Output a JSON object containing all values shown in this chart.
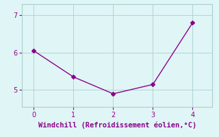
{
  "x": [
    0,
    1,
    2,
    3,
    4
  ],
  "y": [
    6.05,
    5.35,
    4.9,
    5.15,
    6.8
  ],
  "line_color": "#8B008B",
  "marker": "D",
  "marker_size": 3,
  "background_color": "#e0f5f5",
  "grid_color": "#aacfcf",
  "xlabel": "Windchill (Refroidissement éolien,°C)",
  "xlabel_color": "#8B008B",
  "xlabel_fontsize": 7.5,
  "tick_color": "#8B008B",
  "tick_fontsize": 7,
  "xlim": [
    -0.3,
    4.5
  ],
  "ylim": [
    4.55,
    7.3
  ],
  "yticks": [
    5,
    6,
    7
  ],
  "xticks": [
    0,
    1,
    2,
    3,
    4
  ]
}
